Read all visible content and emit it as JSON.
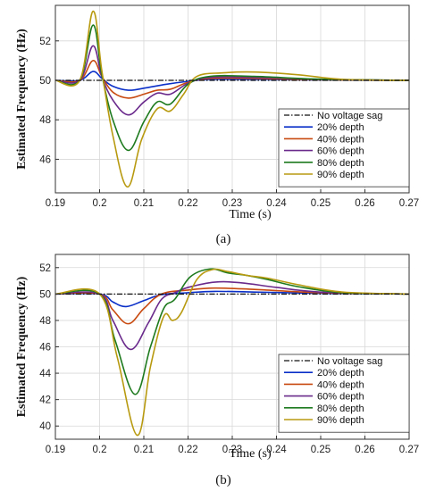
{
  "colors": {
    "nosag": "#111111",
    "d20": "#0a2fc8",
    "d40": "#c84a10",
    "d60": "#6a2a8c",
    "d80": "#1e7a1e",
    "d90": "#b89a10",
    "grid": "#d8d8d8",
    "axis": "#333333"
  },
  "chart_data": [
    {
      "type": "line",
      "subfigure_label": "(a)",
      "xlabel": "Time (s)",
      "ylabel": "Estimated Frequency (Hz)",
      "xlim": [
        0.19,
        0.27
      ],
      "ylim": [
        44.3,
        53.8
      ],
      "xticks": [
        0.19,
        0.2,
        0.21,
        0.22,
        0.23,
        0.24,
        0.25,
        0.26,
        0.27
      ],
      "xtick_labels": [
        "0.19",
        "0.2",
        "0.21",
        "0.22",
        "0.23",
        "0.24",
        "0.25",
        "0.26",
        "0.27"
      ],
      "yticks": [
        46,
        48,
        50,
        52
      ],
      "ytick_labels": [
        "46",
        "48",
        "50",
        "52"
      ],
      "grid": true,
      "legend_position": "bottom-right",
      "series": [
        {
          "name": "No voltage sag",
          "color_key": "nosag",
          "dash": "dashdot",
          "x": [
            0.19,
            0.27
          ],
          "y": [
            50,
            50
          ]
        },
        {
          "name": "20% depth",
          "color_key": "d20",
          "dash": "solid",
          "x": [
            0.19,
            0.1955,
            0.1985,
            0.2005,
            0.203,
            0.2065,
            0.21,
            0.215,
            0.22,
            0.225,
            0.235,
            0.25,
            0.27
          ],
          "y": [
            50,
            50,
            50.45,
            50.1,
            49.7,
            49.5,
            49.6,
            49.8,
            49.95,
            50.05,
            50.05,
            50.02,
            50
          ]
        },
        {
          "name": "40% depth",
          "color_key": "d40",
          "dash": "solid",
          "x": [
            0.19,
            0.1955,
            0.1985,
            0.2005,
            0.203,
            0.2065,
            0.21,
            0.213,
            0.216,
            0.22,
            0.225,
            0.235,
            0.25,
            0.27
          ],
          "y": [
            50,
            50,
            51.0,
            50.2,
            49.4,
            49.1,
            49.3,
            49.5,
            49.55,
            49.9,
            50.1,
            50.1,
            50.03,
            50
          ]
        },
        {
          "name": "60% depth",
          "color_key": "d60",
          "dash": "solid",
          "x": [
            0.19,
            0.1955,
            0.1985,
            0.2005,
            0.203,
            0.2065,
            0.21,
            0.213,
            0.216,
            0.22,
            0.225,
            0.235,
            0.25,
            0.27
          ],
          "y": [
            50,
            50,
            51.75,
            50.2,
            49.0,
            48.25,
            48.9,
            49.35,
            49.3,
            49.85,
            50.15,
            50.15,
            50.05,
            50
          ]
        },
        {
          "name": "80% depth",
          "color_key": "d80",
          "dash": "solid",
          "x": [
            0.19,
            0.1955,
            0.1985,
            0.2005,
            0.203,
            0.2065,
            0.21,
            0.213,
            0.216,
            0.22,
            0.225,
            0.235,
            0.25,
            0.27
          ],
          "y": [
            50,
            50,
            52.8,
            50.3,
            48.0,
            46.45,
            47.9,
            48.9,
            48.8,
            49.8,
            50.2,
            50.2,
            50.06,
            50
          ]
        },
        {
          "name": "90% depth",
          "color_key": "d90",
          "dash": "solid",
          "x": [
            0.19,
            0.1955,
            0.1985,
            0.2005,
            0.203,
            0.2063,
            0.2095,
            0.213,
            0.216,
            0.219,
            0.222,
            0.228,
            0.235,
            0.245,
            0.255,
            0.27
          ],
          "y": [
            50,
            50,
            53.5,
            50.5,
            47.2,
            44.6,
            47.0,
            48.55,
            48.45,
            49.3,
            50.2,
            50.38,
            50.42,
            50.28,
            50.05,
            50
          ]
        }
      ]
    },
    {
      "type": "line",
      "subfigure_label": "(b)",
      "xlabel": "Time (s)",
      "ylabel": "Estimated Frequency (Hz)",
      "xlim": [
        0.19,
        0.27
      ],
      "ylim": [
        39,
        53
      ],
      "xticks": [
        0.19,
        0.2,
        0.21,
        0.22,
        0.23,
        0.24,
        0.25,
        0.26,
        0.27
      ],
      "xtick_labels": [
        "0.19",
        "0.2",
        "0.21",
        "0.22",
        "0.23",
        "0.24",
        "0.25",
        "0.26",
        "0.27"
      ],
      "yticks": [
        40,
        42,
        44,
        46,
        48,
        50,
        52
      ],
      "ytick_labels": [
        "40",
        "42",
        "44",
        "46",
        "48",
        "50",
        "52"
      ],
      "grid": true,
      "legend_position": "bottom-right",
      "series": [
        {
          "name": "No voltage sag",
          "color_key": "nosag",
          "dash": "dashdot",
          "x": [
            0.19,
            0.27
          ],
          "y": [
            50,
            50
          ]
        },
        {
          "name": "20% depth",
          "color_key": "d20",
          "dash": "solid",
          "x": [
            0.19,
            0.2,
            0.203,
            0.206,
            0.21,
            0.214,
            0.22,
            0.226,
            0.235,
            0.25,
            0.27
          ],
          "y": [
            50,
            50,
            49.4,
            49.05,
            49.5,
            49.95,
            50.1,
            50.2,
            50.15,
            50.05,
            50
          ]
        },
        {
          "name": "40% depth",
          "color_key": "d40",
          "dash": "solid",
          "x": [
            0.19,
            0.2,
            0.203,
            0.2065,
            0.21,
            0.214,
            0.22,
            0.226,
            0.235,
            0.25,
            0.27
          ],
          "y": [
            50,
            50,
            48.8,
            47.75,
            48.9,
            50.0,
            50.3,
            50.45,
            50.35,
            50.1,
            50
          ]
        },
        {
          "name": "60% depth",
          "color_key": "d60",
          "dash": "solid",
          "x": [
            0.19,
            0.2,
            0.203,
            0.207,
            0.211,
            0.214,
            0.217,
            0.22,
            0.226,
            0.232,
            0.24,
            0.25,
            0.27
          ],
          "y": [
            50,
            50,
            48.0,
            45.8,
            47.8,
            49.6,
            50.1,
            50.5,
            50.9,
            50.85,
            50.5,
            50.15,
            50
          ]
        },
        {
          "name": "80% depth",
          "color_key": "d80",
          "dash": "solid",
          "x": [
            0.19,
            0.2,
            0.2035,
            0.208,
            0.2115,
            0.2145,
            0.217,
            0.2205,
            0.225,
            0.229,
            0.2335,
            0.238,
            0.245,
            0.255,
            0.27
          ],
          "y": [
            50,
            50,
            46.5,
            42.4,
            46.0,
            48.9,
            49.6,
            51.3,
            51.9,
            51.6,
            51.4,
            51.1,
            50.55,
            50.1,
            50
          ]
        },
        {
          "name": "90% depth",
          "color_key": "d90",
          "dash": "solid",
          "x": [
            0.19,
            0.2,
            0.204,
            0.2085,
            0.2115,
            0.2145,
            0.2165,
            0.2185,
            0.222,
            0.2255,
            0.229,
            0.2335,
            0.238,
            0.245,
            0.255,
            0.27
          ],
          "y": [
            50,
            50,
            45.2,
            39.3,
            44.5,
            48.3,
            48.0,
            48.6,
            51.1,
            51.85,
            51.7,
            51.4,
            51.2,
            50.7,
            50.15,
            50
          ]
        }
      ]
    }
  ]
}
